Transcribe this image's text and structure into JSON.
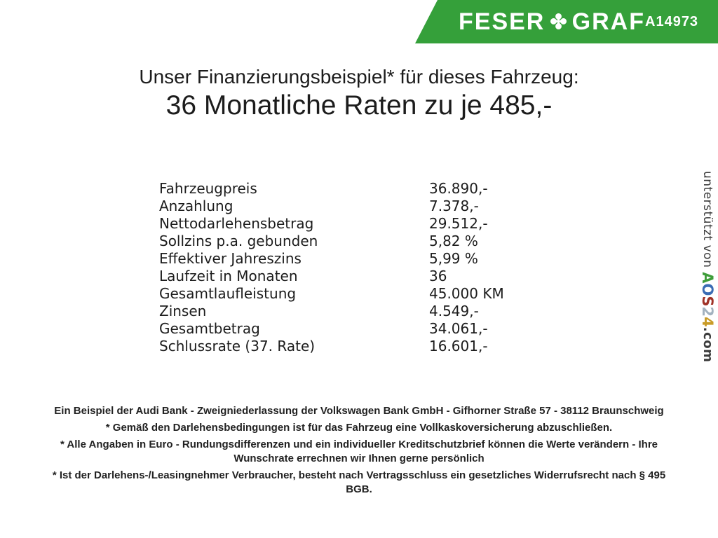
{
  "banner": {
    "brand_left": "FESER",
    "brand_right": "GRAF",
    "clover_glyph": "✤",
    "vehicle_id": "A14973",
    "background_color": "#35a03a"
  },
  "title": {
    "line1": "Unser Finanzierungsbeispiel* für dieses Fahrzeug:",
    "line2": "36 Monatliche Raten zu je 485,-"
  },
  "finance_table": {
    "rows": [
      {
        "label": "Fahrzeugpreis",
        "value": "36.890,-"
      },
      {
        "label": "Anzahlung",
        "value": "7.378,-"
      },
      {
        "label": "Nettodarlehensbetrag",
        "value": "29.512,-"
      },
      {
        "label": "Sollzins p.a. gebunden",
        "value": "5,82 %"
      },
      {
        "label": "Effektiver Jahreszins",
        "value": "5,99 %"
      },
      {
        "label": "Laufzeit in Monaten",
        "value": "36"
      },
      {
        "label": "Gesamtlaufleistung",
        "value": "45.000 KM"
      },
      {
        "label": "Zinsen",
        "value": "4.549,-"
      },
      {
        "label": "Gesamtbetrag",
        "value": "34.061,-"
      },
      {
        "label": "Schlussrate (37. Rate)",
        "value": "16.601,-"
      }
    ]
  },
  "sidebar": {
    "supported_by": "unterstützt von ",
    "logo": {
      "letters": [
        {
          "char": "A",
          "color": "#3f9d3a"
        },
        {
          "char": "O",
          "color": "#3a6cb4"
        },
        {
          "char": "S",
          "color": "#a03227"
        },
        {
          "char": "2",
          "color": "#a3b2bf"
        },
        {
          "char": "4",
          "color": "#c99b27"
        }
      ],
      "suffix": ".com"
    }
  },
  "footer": {
    "paragraphs": [
      "Ein Beispiel der Audi Bank - Zweigniederlassung der Volkswagen Bank GmbH - Gifhorner Straße 57 - 38112 Braunschweig",
      "* Gemäß den Darlehensbedingungen ist für das Fahrzeug eine Vollkaskoversicherung abzuschließen.",
      "* Alle Angaben in Euro - Rundungsdifferenzen und ein individueller Kreditschutzbrief können die Werte verändern - Ihre Wunschrate errechnen wir Ihnen gerne persönlich",
      "* Ist der Darlehens-/Leasingnehmer Verbraucher, besteht nach Vertragsschluss ein gesetzliches Widerrufsrecht nach § 495 BGB."
    ]
  }
}
